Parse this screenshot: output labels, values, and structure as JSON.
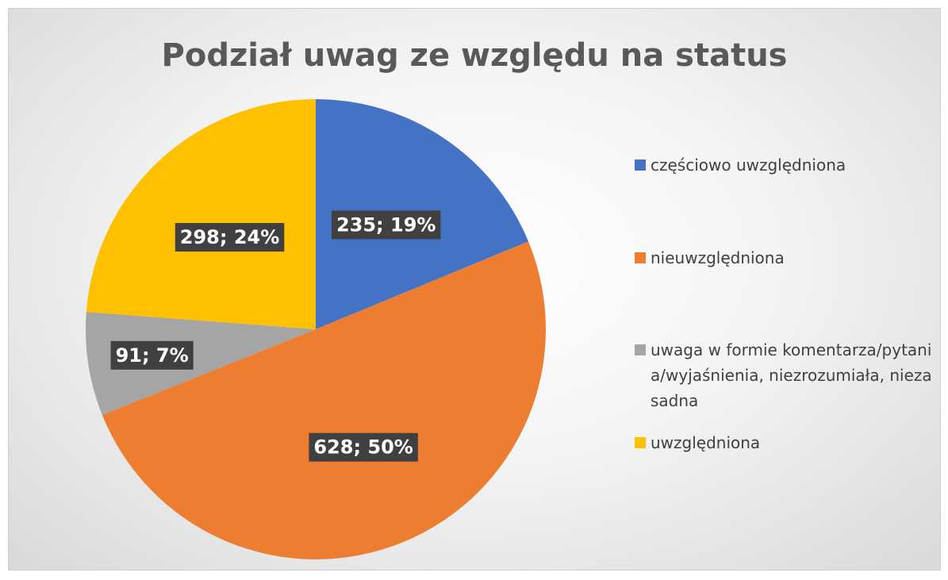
{
  "chart_data": {
    "type": "pie",
    "title": "Podział uwag ze względu na status",
    "categories": [
      "częściowo uwzględniona",
      "nieuwzględniona",
      "uwaga w formie komentarza/pytania/wyjaśnienia, niezrozumiała, niezasadna",
      "uwzględniona"
    ],
    "values": [
      235,
      628,
      91,
      298
    ],
    "value_labels": [
      "235; 19%",
      "628; 50%",
      "91; 7%",
      "298; 24%"
    ],
    "colors": [
      "#4472c4",
      "#ed7d31",
      "#a5a5a5",
      "#ffc000"
    ],
    "legend": "right"
  }
}
